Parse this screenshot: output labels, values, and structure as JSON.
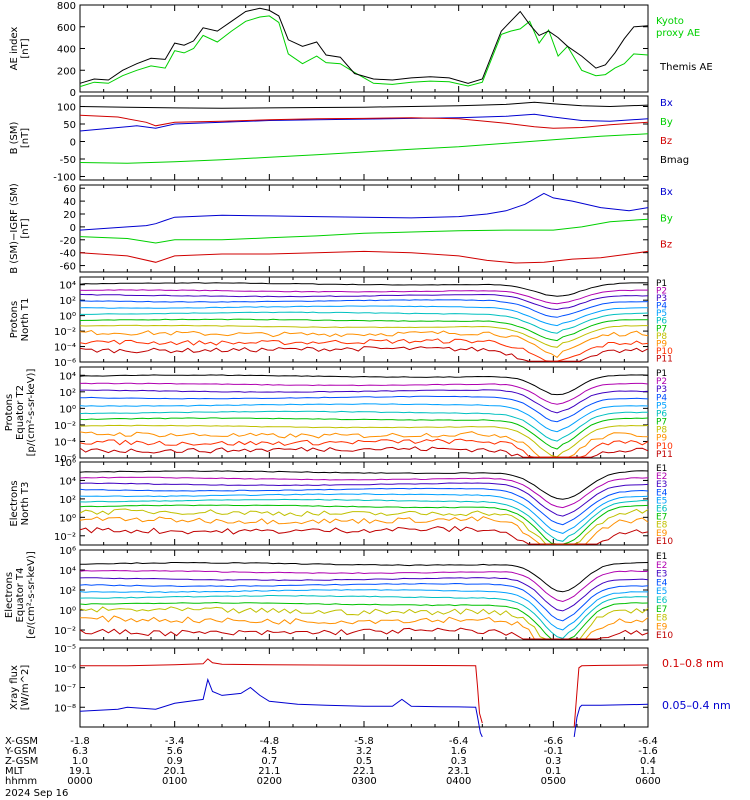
{
  "figure": {
    "date_label": "2024 Sep 16",
    "time_axis_label": "hhmm",
    "colors": {
      "black": "#000000",
      "green": "#00d000",
      "blue": "#0000d0",
      "red": "#d00000"
    }
  },
  "orbit": {
    "rows": [
      {
        "label": "X-GSM",
        "values": [
          "-1.8",
          "-3.4",
          "-4.8",
          "-5.8",
          "-6.4",
          "-6.6",
          "-6.4"
        ]
      },
      {
        "label": "Y-GSM",
        "values": [
          "6.3",
          "5.6",
          "4.5",
          "3.2",
          "1.6",
          "-0.1",
          "-1.6"
        ]
      },
      {
        "label": "Z-GSM",
        "values": [
          "1.0",
          "0.9",
          "0.7",
          "0.5",
          "0.3",
          "0.3",
          "0.4"
        ]
      },
      {
        "label": "MLT",
        "values": [
          "19.1",
          "20.1",
          "21.1",
          "22.1",
          "23.1",
          "0.1",
          "1.1"
        ]
      },
      {
        "label": "hhmm",
        "values": [
          "0000",
          "0100",
          "0200",
          "0300",
          "0400",
          "0500",
          "0600"
        ]
      }
    ]
  },
  "chart_data": [
    {
      "id": "ae",
      "type": "line",
      "ylabel": [
        "AE index",
        "[nT]"
      ],
      "ylim": [
        0,
        800
      ],
      "yscale": "linear",
      "yticks": [
        0,
        200,
        400,
        600,
        800
      ],
      "x_unit": "hours UT",
      "xlim": [
        0,
        6
      ],
      "legend": [
        {
          "text": "Kyoto",
          "color": "#00d000"
        },
        {
          "text": "proxy AE",
          "color": "#00d000"
        },
        {
          "text": "Themis AE",
          "color": "#000000"
        }
      ],
      "series": [
        {
          "name": "Kyoto proxy AE",
          "color": "#00d000",
          "x": [
            0,
            0.15,
            0.3,
            0.45,
            0.6,
            0.75,
            0.9,
            1.0,
            1.1,
            1.2,
            1.3,
            1.45,
            1.6,
            1.75,
            1.9,
            2.0,
            2.1,
            2.2,
            2.35,
            2.5,
            2.6,
            2.75,
            2.9,
            3.1,
            3.3,
            3.5,
            3.7,
            3.9,
            4.1,
            4.25,
            4.35,
            4.45,
            4.55,
            4.65,
            4.75,
            4.85,
            4.95,
            5.05,
            5.15,
            5.3,
            5.45,
            5.55,
            5.65,
            5.75,
            5.85,
            6.0
          ],
          "y": [
            50,
            90,
            80,
            150,
            200,
            240,
            220,
            380,
            360,
            400,
            520,
            460,
            560,
            650,
            690,
            700,
            640,
            350,
            260,
            330,
            270,
            260,
            180,
            80,
            70,
            90,
            100,
            95,
            55,
            90,
            310,
            530,
            560,
            580,
            650,
            450,
            570,
            330,
            420,
            200,
            150,
            160,
            220,
            260,
            350,
            340
          ]
        },
        {
          "name": "Themis AE",
          "color": "#000000",
          "x": [
            0,
            0.15,
            0.3,
            0.45,
            0.6,
            0.75,
            0.9,
            1.0,
            1.1,
            1.2,
            1.3,
            1.45,
            1.6,
            1.75,
            1.9,
            2.0,
            2.1,
            2.2,
            2.35,
            2.5,
            2.6,
            2.75,
            2.9,
            3.1,
            3.3,
            3.5,
            3.7,
            3.9,
            4.1,
            4.25,
            4.35,
            4.45,
            4.55,
            4.65,
            4.75,
            4.85,
            4.95,
            5.05,
            5.15,
            5.3,
            5.45,
            5.55,
            5.65,
            5.75,
            5.85,
            6.0
          ],
          "y": [
            80,
            120,
            110,
            200,
            260,
            310,
            300,
            450,
            430,
            470,
            590,
            560,
            650,
            740,
            770,
            750,
            700,
            480,
            420,
            460,
            340,
            320,
            170,
            120,
            110,
            130,
            140,
            130,
            80,
            120,
            340,
            560,
            650,
            740,
            620,
            520,
            560,
            500,
            420,
            330,
            220,
            250,
            360,
            490,
            600,
            610
          ]
        }
      ]
    },
    {
      "id": "b_sm",
      "type": "line",
      "ylabel": [
        "B (SM)",
        "[nT]"
      ],
      "ylim": [
        -110,
        130
      ],
      "yscale": "linear",
      "yticks": [
        -100,
        -50,
        0,
        50,
        100
      ],
      "xlim": [
        0,
        6
      ],
      "legend": [
        {
          "text": "Bx",
          "color": "#0000d0"
        },
        {
          "text": "By",
          "color": "#00d000"
        },
        {
          "text": "Bz",
          "color": "#d00000"
        },
        {
          "text": "Bmag",
          "color": "#000000"
        }
      ],
      "series": [
        {
          "name": "Bx",
          "color": "#0000d0",
          "x": [
            0,
            0.6,
            0.8,
            1.0,
            1.5,
            2.0,
            2.5,
            3.0,
            3.5,
            4.0,
            4.5,
            4.8,
            5.0,
            5.3,
            5.6,
            6.0
          ],
          "y": [
            30,
            45,
            38,
            50,
            55,
            60,
            62,
            64,
            66,
            68,
            72,
            78,
            70,
            60,
            58,
            65
          ]
        },
        {
          "name": "By",
          "color": "#00d000",
          "x": [
            0,
            0.5,
            1.0,
            1.5,
            2.0,
            2.5,
            3.0,
            3.5,
            4.0,
            4.5,
            5.0,
            5.5,
            6.0
          ],
          "y": [
            -60,
            -62,
            -58,
            -52,
            -45,
            -38,
            -30,
            -22,
            -15,
            -5,
            5,
            15,
            22
          ]
        },
        {
          "name": "Bz",
          "color": "#d00000",
          "x": [
            0,
            0.4,
            0.7,
            0.8,
            1.0,
            1.5,
            2.0,
            2.5,
            3.0,
            3.5,
            4.0,
            4.5,
            4.8,
            5.0,
            5.3,
            5.6,
            6.0
          ],
          "y": [
            75,
            70,
            55,
            45,
            55,
            58,
            62,
            65,
            66,
            68,
            65,
            52,
            42,
            38,
            40,
            48,
            55
          ]
        },
        {
          "name": "Bmag",
          "color": "#000000",
          "x": [
            0,
            0.5,
            1.0,
            1.5,
            2.0,
            2.5,
            3.0,
            3.5,
            4.0,
            4.5,
            4.8,
            5.0,
            5.3,
            5.6,
            6.0
          ],
          "y": [
            100,
            98,
            96,
            95,
            96,
            97,
            98,
            100,
            102,
            106,
            112,
            108,
            102,
            100,
            104
          ]
        }
      ]
    },
    {
      "id": "b_igrf",
      "type": "line",
      "ylabel": [
        "B (SM)−IGRF (SM)",
        "[nT]"
      ],
      "ylim": [
        -70,
        65
      ],
      "yscale": "linear",
      "yticks": [
        -60,
        -40,
        -20,
        0,
        20,
        40,
        60
      ],
      "xlim": [
        0,
        6
      ],
      "legend": [
        {
          "text": "Bx",
          "color": "#0000d0"
        },
        {
          "text": "By",
          "color": "#00d000"
        },
        {
          "text": "Bz",
          "color": "#d00000"
        }
      ],
      "series": [
        {
          "name": "Bx",
          "color": "#0000d0",
          "x": [
            0,
            0.5,
            0.7,
            0.8,
            0.9,
            1.0,
            1.5,
            2.0,
            2.5,
            3.0,
            3.5,
            4.0,
            4.3,
            4.5,
            4.7,
            4.9,
            5.0,
            5.2,
            5.5,
            5.8,
            6.0
          ],
          "y": [
            -5,
            0,
            2,
            5,
            10,
            15,
            18,
            17,
            16,
            15,
            14,
            16,
            20,
            25,
            35,
            52,
            45,
            40,
            30,
            25,
            30
          ]
        },
        {
          "name": "By",
          "color": "#00d000",
          "x": [
            0,
            0.5,
            0.8,
            1.0,
            1.5,
            2.0,
            2.5,
            3.0,
            3.5,
            4.0,
            4.5,
            5.0,
            5.3,
            5.6,
            6.0
          ],
          "y": [
            -15,
            -18,
            -25,
            -20,
            -20,
            -17,
            -14,
            -10,
            -8,
            -6,
            -5,
            -5,
            0,
            8,
            12
          ]
        },
        {
          "name": "Bz",
          "color": "#d00000",
          "x": [
            0,
            0.5,
            0.8,
            1.0,
            1.5,
            2.0,
            2.5,
            3.0,
            3.5,
            4.0,
            4.3,
            4.6,
            4.9,
            5.2,
            5.5,
            5.8,
            6.0
          ],
          "y": [
            -40,
            -45,
            -55,
            -45,
            -42,
            -42,
            -40,
            -38,
            -40,
            -45,
            -52,
            -56,
            -55,
            -50,
            -48,
            -42,
            -38
          ]
        }
      ]
    },
    {
      "id": "protons_north",
      "type": "line",
      "ylabel": [
        "Protons",
        "North T1"
      ],
      "ylim_log10": [
        -6,
        5
      ],
      "yscale": "log",
      "ytick_exponents": [
        -6,
        -4,
        -2,
        0,
        2,
        4
      ],
      "xlim": [
        0,
        6
      ],
      "legend_labels": [
        "P1",
        "P2",
        "P3",
        "P4",
        "P5",
        "P6",
        "P7",
        "P8",
        "P9",
        "P10",
        "P11"
      ],
      "channel_colors": [
        "#000000",
        "#b000b0",
        "#4000c0",
        "#0050ff",
        "#00a0ff",
        "#00c0c0",
        "#00c000",
        "#c0c000",
        "#ff9000",
        "#ff3000",
        "#c00000"
      ],
      "channel_log10_base": [
        4.1,
        3.2,
        2.6,
        1.9,
        1.1,
        0.3,
        -0.6,
        -1.4,
        -2.3,
        -3.4,
        -4.4
      ],
      "dip": {
        "center_hour": 5.05,
        "width_hours": 0.35,
        "depth_log10": 1.6
      }
    },
    {
      "id": "protons_equator",
      "type": "line",
      "ylabel": [
        "Protons",
        "Equator T2",
        "[p/(cm²-s-sr-keV)]"
      ],
      "ylim_log10": [
        -6,
        5
      ],
      "yscale": "log",
      "ytick_exponents": [
        -6,
        -4,
        -2,
        0,
        2,
        4
      ],
      "xlim": [
        0,
        6
      ],
      "legend_labels": [
        "P1",
        "P2",
        "P3",
        "P4",
        "P5",
        "P6",
        "P7",
        "P8",
        "P9",
        "P10",
        "P11"
      ],
      "channel_colors": [
        "#000000",
        "#b000b0",
        "#4000c0",
        "#0050ff",
        "#00a0ff",
        "#00c0c0",
        "#00c000",
        "#c0c000",
        "#ff9000",
        "#ff3000",
        "#c00000"
      ],
      "channel_log10_base": [
        3.9,
        2.9,
        2.1,
        1.3,
        0.4,
        -0.5,
        -1.3,
        -2.2,
        -3.2,
        -4.1,
        -5.0
      ],
      "dip": {
        "center_hour": 5.05,
        "width_hours": 0.3,
        "depth_log10": 2.3
      }
    },
    {
      "id": "electrons_north",
      "type": "line",
      "ylabel": [
        "Electrons",
        "North T3"
      ],
      "ylim_log10": [
        -3,
        6
      ],
      "yscale": "log",
      "ytick_exponents": [
        -2,
        0,
        2,
        4,
        6
      ],
      "xlim": [
        0,
        6
      ],
      "legend_labels": [
        "E1",
        "E2",
        "E3",
        "E4",
        "E5",
        "E6",
        "E7",
        "E8",
        "E9",
        "E10"
      ],
      "channel_colors": [
        "#000000",
        "#b000b0",
        "#4000c0",
        "#0050ff",
        "#00a0ff",
        "#00c0c0",
        "#00c000",
        "#c0c000",
        "#ff9000",
        "#c00000"
      ],
      "channel_log10_base": [
        4.9,
        4.2,
        3.6,
        3.0,
        2.4,
        1.8,
        1.2,
        0.5,
        -0.3,
        -1.4
      ],
      "dip": {
        "center_hour": 5.1,
        "width_hours": 0.35,
        "depth_log10": 3.0
      }
    },
    {
      "id": "electrons_equator",
      "type": "line",
      "ylabel": [
        "Electrons",
        "Equator T4",
        "[e/(cm²-s-sr-keV)]"
      ],
      "ylim_log10": [
        -3,
        6
      ],
      "yscale": "log",
      "ytick_exponents": [
        -2,
        0,
        2,
        4,
        6
      ],
      "xlim": [
        0,
        6
      ],
      "legend_labels": [
        "E1",
        "E2",
        "E3",
        "E4",
        "E5",
        "E6",
        "E7",
        "E8",
        "E9",
        "E10"
      ],
      "channel_colors": [
        "#000000",
        "#b000b0",
        "#4000c0",
        "#0050ff",
        "#00a0ff",
        "#00c0c0",
        "#00c000",
        "#c0c000",
        "#ff9000",
        "#c00000"
      ],
      "channel_log10_base": [
        4.6,
        3.8,
        3.1,
        2.5,
        1.9,
        1.3,
        0.6,
        -0.1,
        -1.0,
        -2.2
      ],
      "dip": {
        "center_hour": 5.1,
        "width_hours": 0.3,
        "depth_log10": 2.8
      }
    },
    {
      "id": "xray",
      "type": "line",
      "ylabel": [
        "Xray flux",
        "[W/m^2]"
      ],
      "ylim_log10": [
        -9,
        -5
      ],
      "yscale": "log",
      "ytick_exponents": [
        -8,
        -7,
        -6,
        -5
      ],
      "xlim": [
        0,
        6
      ],
      "legend": [
        {
          "text": "0.1–0.8 nm",
          "color": "#d00000"
        },
        {
          "text": "0.05–0.4 nm",
          "color": "#0000d0"
        }
      ],
      "series": [
        {
          "name": "0.1–0.8 nm",
          "color": "#d00000",
          "x": [
            0,
            0.5,
            1.0,
            1.3,
            1.35,
            1.4,
            1.5,
            2.0,
            2.5,
            3.0,
            3.5,
            4.0,
            4.18,
            4.2,
            4.22,
            4.25
          ],
          "y_log10": [
            -5.9,
            -5.9,
            -5.85,
            -5.8,
            -5.55,
            -5.75,
            -5.82,
            -5.85,
            -5.86,
            -5.87,
            -5.88,
            -5.89,
            -5.9,
            -7.0,
            -8.3,
            -8.8
          ]
        },
        {
          "name": "0.1–0.8 nm (after gap)",
          "color": "#d00000",
          "x": [
            5.22,
            5.25,
            5.27,
            5.3,
            5.5,
            6.0
          ],
          "y_log10": [
            -9.0,
            -7.2,
            -6.0,
            -5.9,
            -5.88,
            -5.86
          ]
        }
      ],
      "blue_series": [
        {
          "name": "0.05–0.4 nm",
          "color": "#0000d0",
          "x": [
            0,
            0.4,
            0.5,
            0.8,
            1.0,
            1.3,
            1.35,
            1.4,
            1.5,
            1.7,
            1.8,
            1.9,
            2.0,
            2.3,
            2.6,
            3.0,
            3.3,
            3.4,
            3.5,
            3.8,
            4.0,
            4.18,
            4.2,
            4.23,
            4.25
          ],
          "y_log10": [
            -8.2,
            -8.1,
            -8.0,
            -8.1,
            -7.8,
            -7.6,
            -6.6,
            -7.2,
            -7.4,
            -7.3,
            -7.0,
            -7.4,
            -7.7,
            -7.85,
            -7.9,
            -7.95,
            -7.95,
            -7.6,
            -7.95,
            -7.97,
            -7.98,
            -8.0,
            -8.5,
            -9.3,
            -9.5
          ]
        },
        {
          "name": "0.05–0.4 nm (after gap)",
          "color": "#0000d0",
          "x": [
            5.22,
            5.25,
            5.28,
            5.3,
            5.5,
            6.0
          ],
          "y_log10": [
            -9.5,
            -8.5,
            -8.0,
            -7.9,
            -7.9,
            -7.85
          ]
        }
      ]
    }
  ]
}
